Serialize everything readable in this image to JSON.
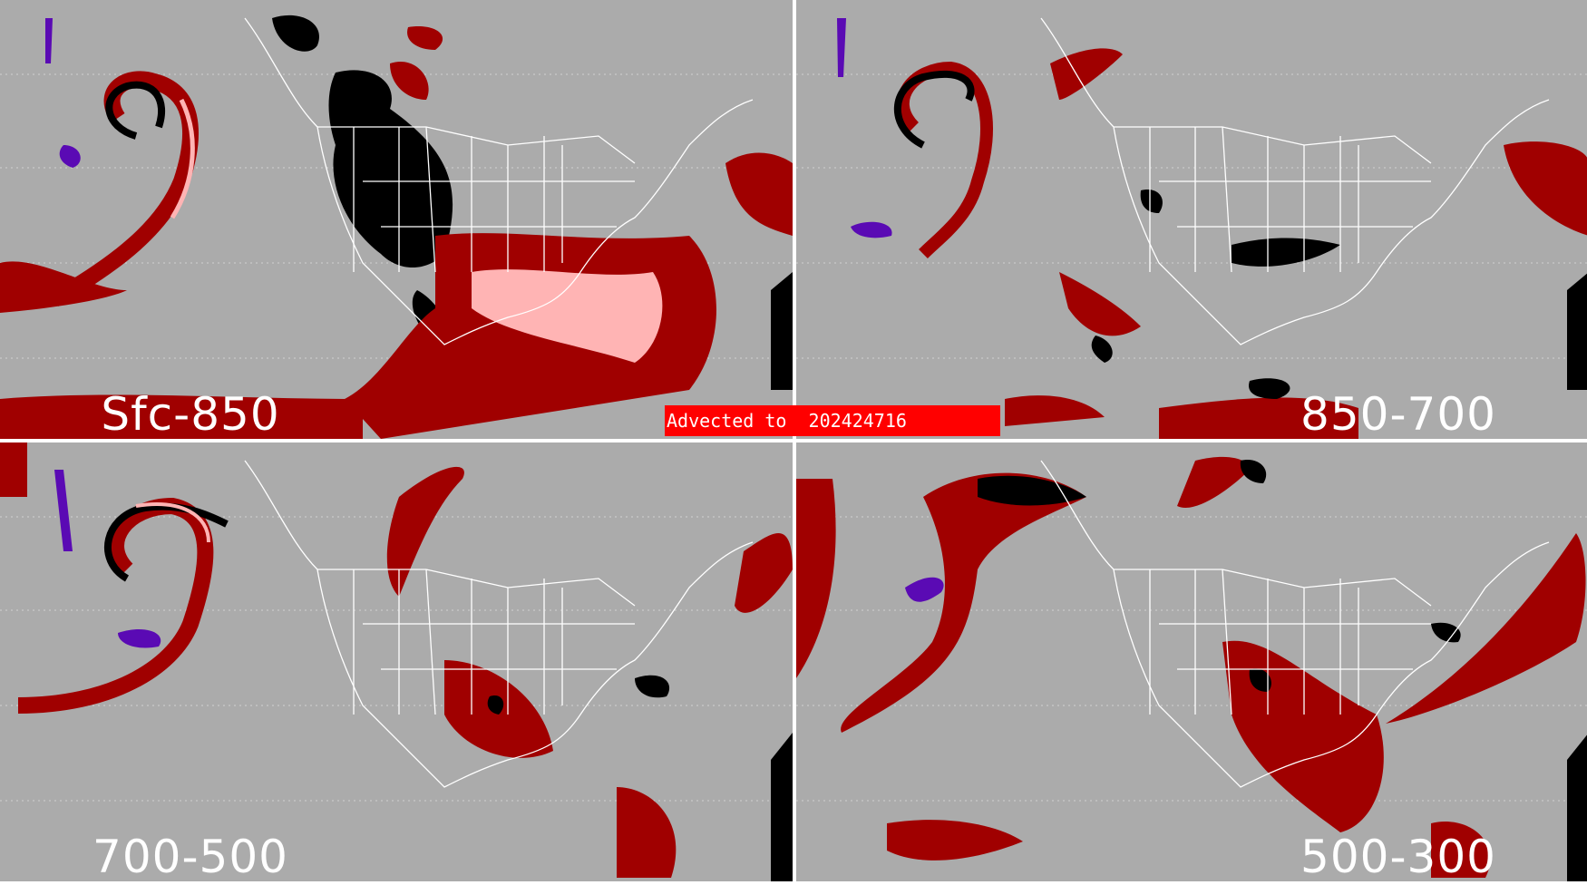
{
  "banner": {
    "text": "Advected to  202424716"
  },
  "panels": [
    {
      "label": "Sfc-850"
    },
    {
      "label": "850-700"
    },
    {
      "label": "700-500"
    },
    {
      "label": "500-300"
    }
  ],
  "colors": {
    "background": "#ababab",
    "divider": "#ffffff",
    "coastlines": "#ffffff",
    "dark_red": "#a00000",
    "pink": "#ffb4b4",
    "black": "#000000",
    "purple": "#5a0ab4",
    "banner": "#ff0000"
  }
}
